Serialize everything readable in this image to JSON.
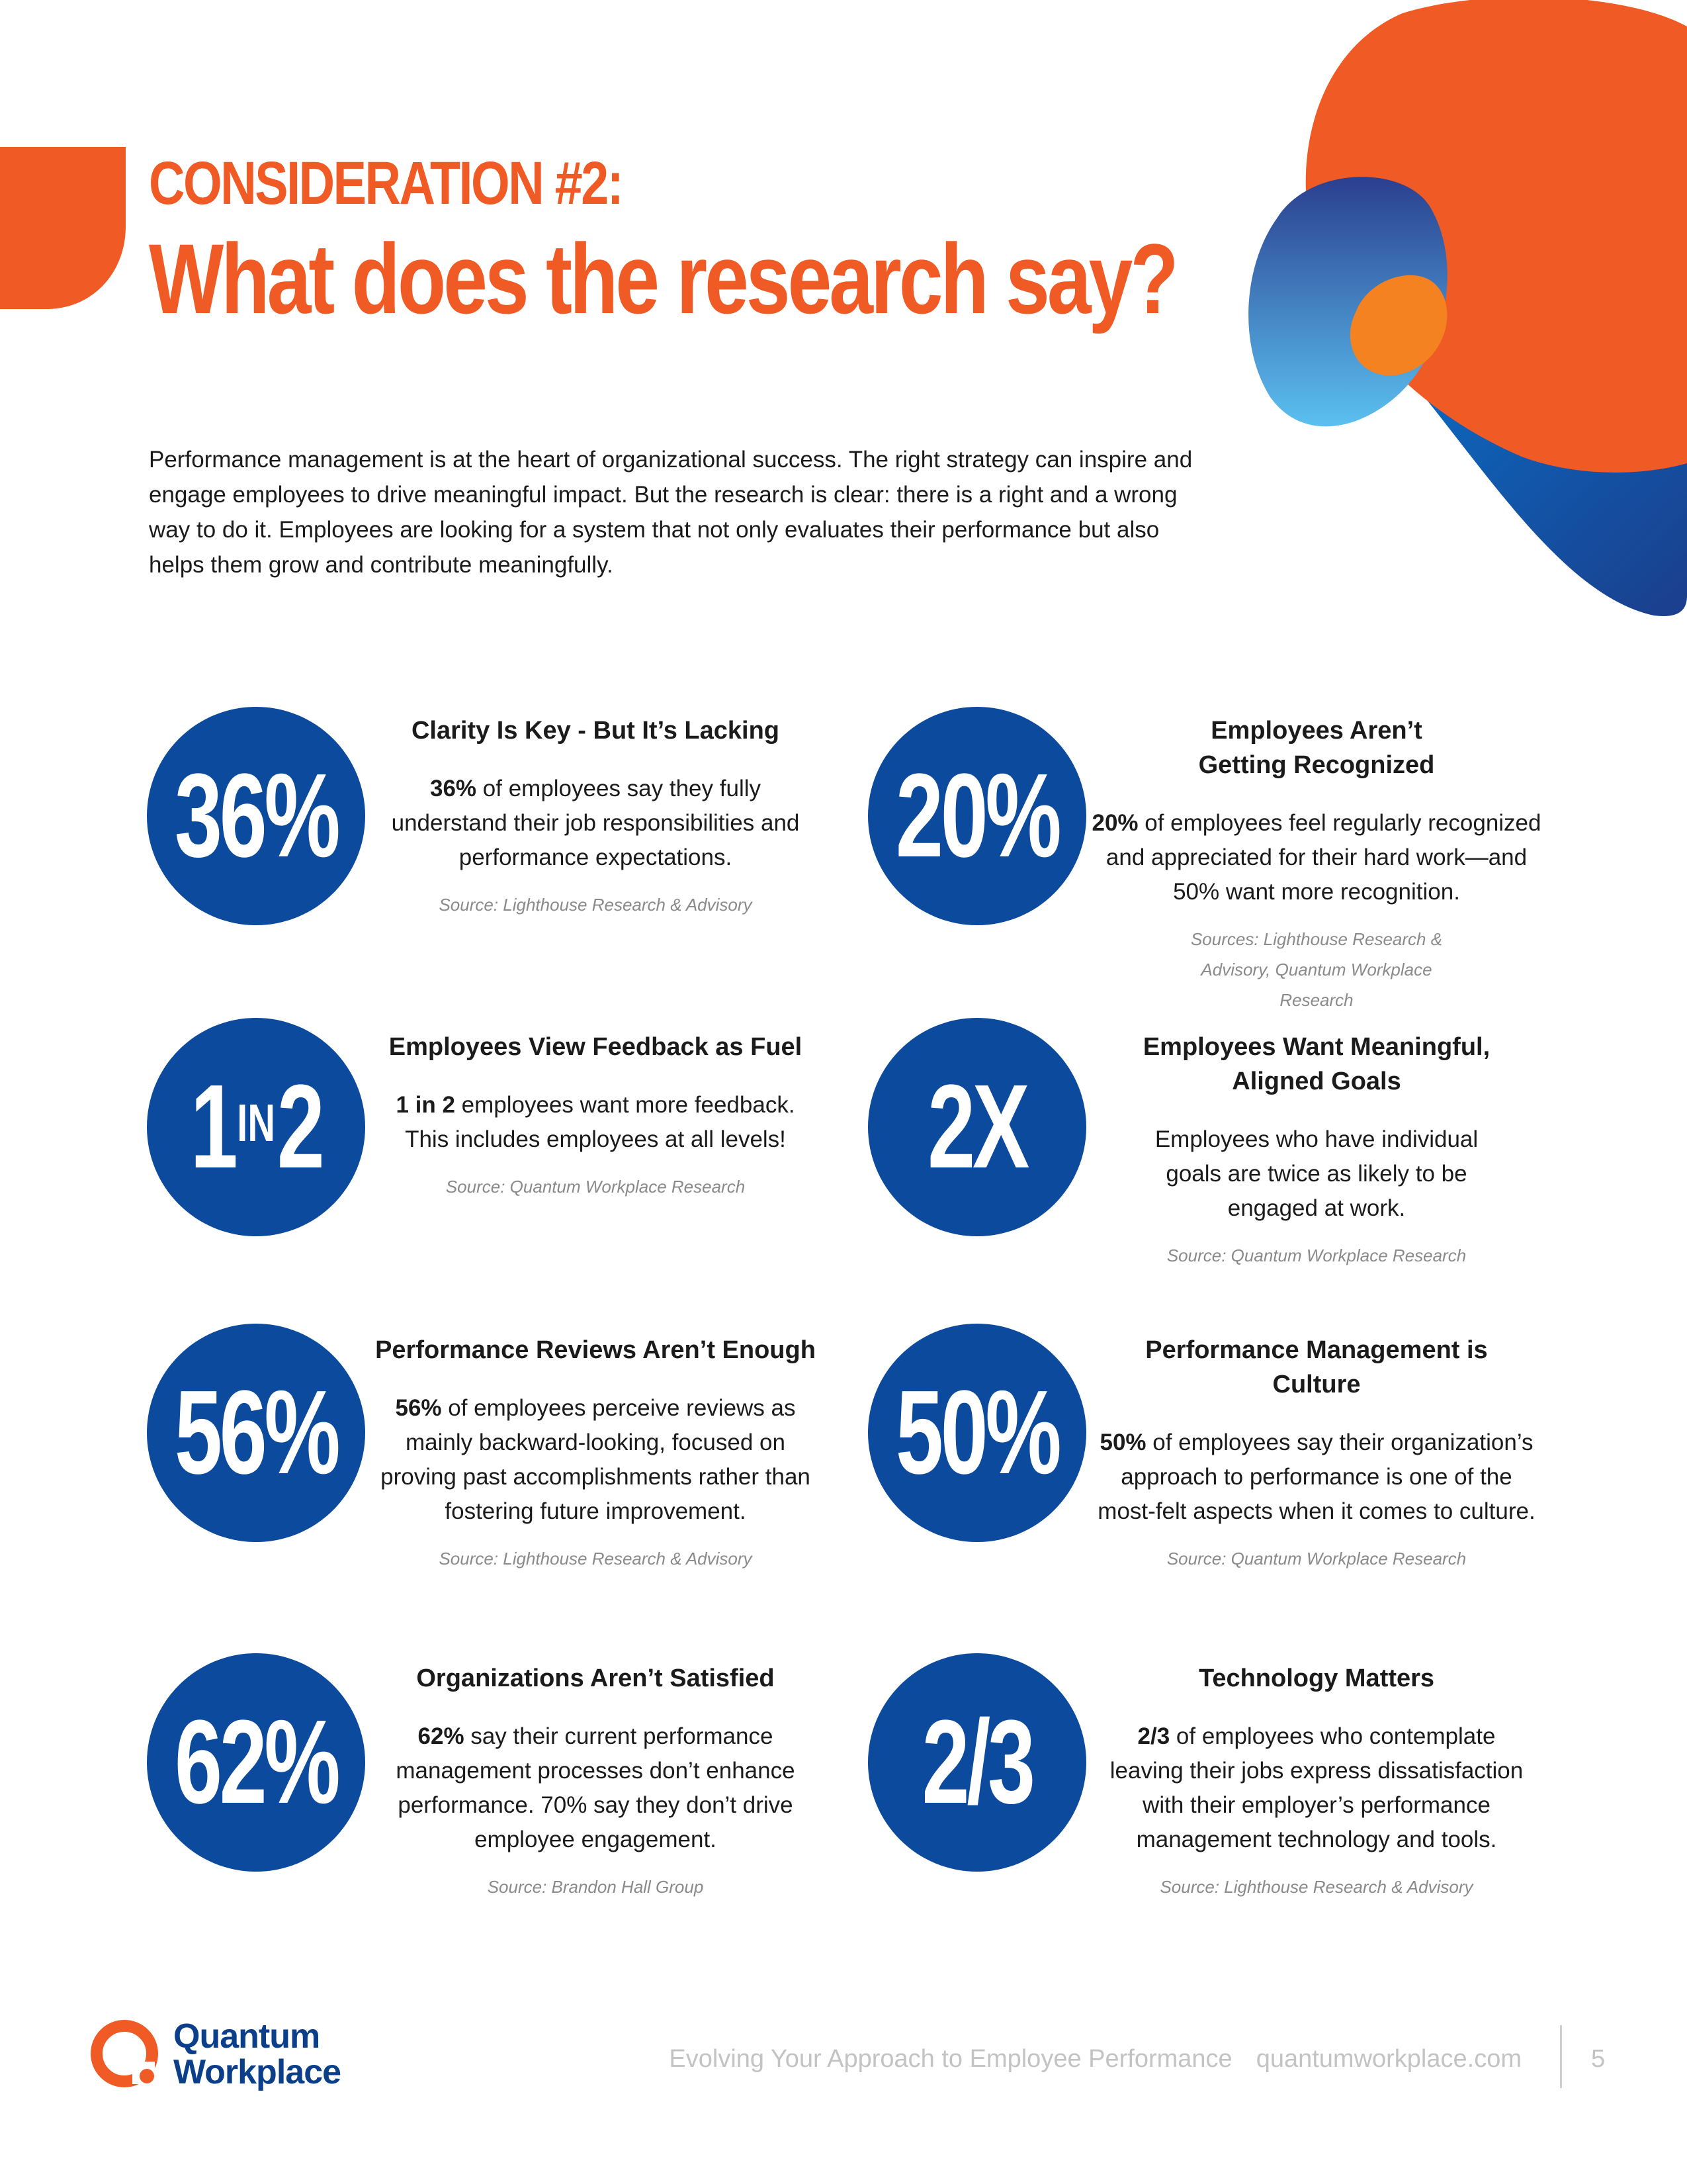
{
  "header": {
    "kicker": "CONSIDERATION #2:",
    "title": "What does the research say?"
  },
  "intro": "Performance management is at the heart of organizational success. The right strategy can inspire and engage employees to drive meaningful impact. But the research is clear: there is a right and a wrong way to do it. Employees are looking for a system that not only evaluates their performance but also helps them grow and contribute meaningfully.",
  "colors": {
    "accent_orange": "#f05a24",
    "stat_blue": "#0b4a9c",
    "logo_navy": "#0b3f8a"
  },
  "stats": {
    "clarity": {
      "figure": "36%",
      "heading": "Clarity Is Key - But It’s Lacking",
      "bold": "36%",
      "body": " of employees say they fully understand their job responsibilities and performance expectations.",
      "source": "Source: Lighthouse Research & Advisory"
    },
    "recognition": {
      "figure": "20%",
      "heading": "Employees Aren’t Getting Recognized",
      "bold": "20%",
      "body": " of employees feel regularly recognized and appreciated for their hard work—and 50% want more recognition.",
      "source": "Sources: Lighthouse Research & Advisory, Quantum Workplace Research"
    },
    "feedback": {
      "figure_left": "1",
      "figure_mid": "IN",
      "figure_right": "2",
      "heading": "Employees View Feedback as Fuel",
      "bold": "1 in 2",
      "body": " employees want more feedback. This includes employees at all levels!",
      "source": "Source: Quantum Workplace Research"
    },
    "goals": {
      "figure": "2X",
      "heading": "Employees Want Meaningful, Aligned Goals",
      "body": "Employees who have individual goals are twice as likely to be engaged at work.",
      "source": "Source: Quantum Workplace Research"
    },
    "reviews": {
      "figure": "56%",
      "heading": "Performance Reviews Aren’t Enough",
      "bold": "56%",
      "body": " of employees perceive reviews as mainly backward-looking, focused on proving past accomplishments rather than fostering future improvement.",
      "source": "Source: Lighthouse Research & Advisory"
    },
    "culture": {
      "figure": "50%",
      "heading": "Performance Management is Culture",
      "bold": "50%",
      "body": " of employees say their organization’s approach to performance is one of the most-felt aspects when it comes to culture.",
      "source": "Source: Quantum Workplace Research"
    },
    "satisfied": {
      "figure": "62%",
      "heading": "Organizations Aren’t Satisfied",
      "bold": "62%",
      "body": " say their current performance management processes don’t enhance performance. 70% say they don’t drive employee engagement.",
      "source": "Source: Brandon Hall Group"
    },
    "technology": {
      "figure": "2/3",
      "heading": "Technology Matters",
      "bold": "2/3",
      "body": " of employees who contemplate leaving their jobs express dissatisfaction with their employer’s performance management technology and tools.",
      "source": "Source: Lighthouse Research & Advisory"
    }
  },
  "footer": {
    "logo_line1": "Quantum",
    "logo_line2": "Workplace",
    "publication": "Evolving Your Approach to Employee Performance",
    "website": "quantumworkplace.com",
    "page_number": "5"
  }
}
